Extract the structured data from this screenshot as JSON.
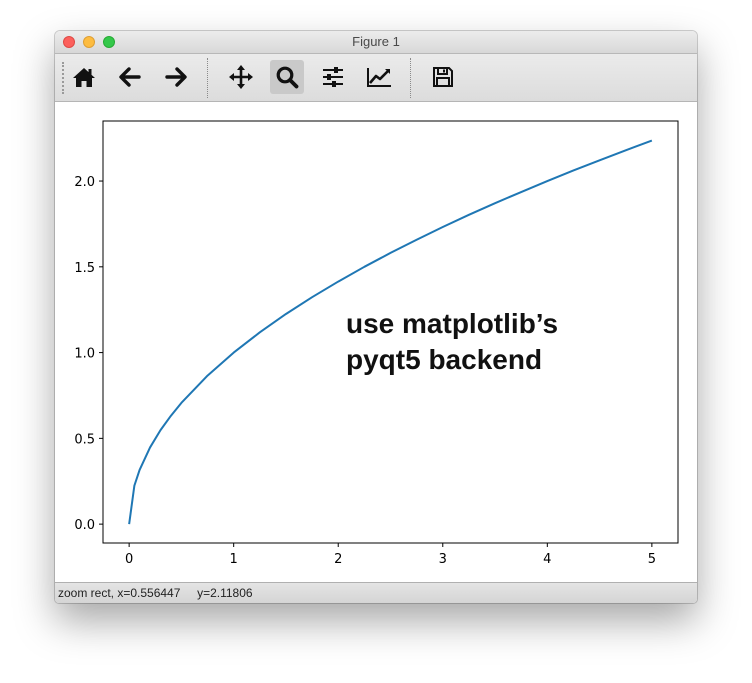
{
  "window": {
    "title": "Figure 1"
  },
  "toolbar": {
    "buttons": [
      {
        "name": "home",
        "icon": "home-icon",
        "active": false
      },
      {
        "name": "back",
        "icon": "arrow-left-icon",
        "active": false
      },
      {
        "name": "forward",
        "icon": "arrow-right-icon",
        "active": false
      },
      {
        "name": "pan",
        "icon": "move-icon",
        "active": false
      },
      {
        "name": "zoom",
        "icon": "zoom-icon",
        "active": true
      },
      {
        "name": "subplots",
        "icon": "sliders-icon",
        "active": false
      },
      {
        "name": "edit-axes",
        "icon": "line-chart-icon",
        "active": false
      },
      {
        "name": "save",
        "icon": "floppy-icon",
        "active": false
      }
    ]
  },
  "plot": {
    "annotation_line1": "use matplotlib’s",
    "annotation_line2": "pyqt5 backend"
  },
  "status": {
    "text": "zoom rect, x=0.556447     y=2.11806"
  },
  "chart_data": {
    "type": "line",
    "title": "",
    "xlabel": "",
    "ylabel": "",
    "xlim": [
      -0.25,
      5.25
    ],
    "ylim": [
      -0.11,
      2.35
    ],
    "xticks": [
      0,
      1,
      2,
      3,
      4,
      5
    ],
    "xtick_labels": [
      "0",
      "1",
      "2",
      "3",
      "4",
      "5"
    ],
    "yticks": [
      0.0,
      0.5,
      1.0,
      1.5,
      2.0
    ],
    "ytick_labels": [
      "0.0",
      "0.5",
      "1.0",
      "1.5",
      "2.0"
    ],
    "grid": false,
    "series": [
      {
        "color": "#1f77b4",
        "x": [
          0,
          0.05,
          0.1,
          0.2,
          0.3,
          0.4,
          0.5,
          0.75,
          1,
          1.25,
          1.5,
          1.75,
          2,
          2.25,
          2.5,
          2.75,
          3,
          3.25,
          3.5,
          3.75,
          4,
          4.25,
          4.5,
          4.75,
          5
        ],
        "y": [
          0,
          0.224,
          0.316,
          0.447,
          0.548,
          0.632,
          0.707,
          0.866,
          1.0,
          1.118,
          1.225,
          1.323,
          1.414,
          1.5,
          1.581,
          1.658,
          1.732,
          1.803,
          1.871,
          1.936,
          2.0,
          2.062,
          2.121,
          2.179,
          2.236
        ]
      }
    ]
  }
}
